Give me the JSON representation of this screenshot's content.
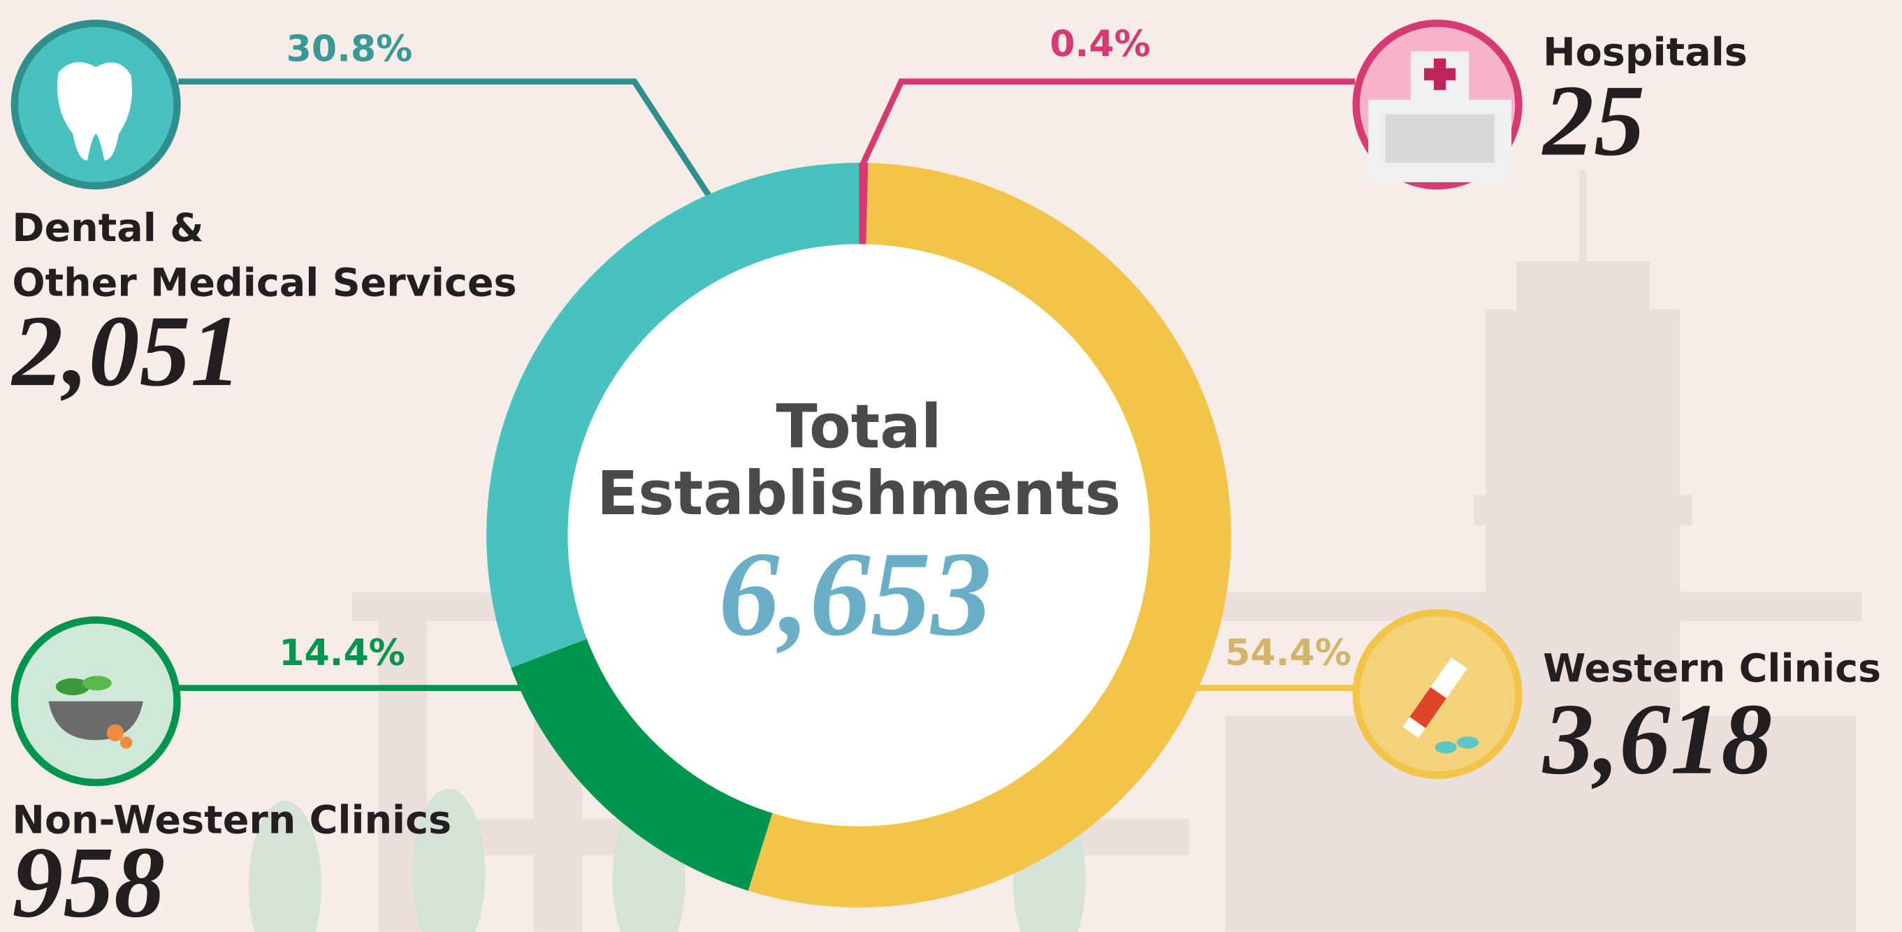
{
  "chart_data": {
    "type": "donut",
    "center_title": [
      "Total",
      "Establishments"
    ],
    "center_value": "6,653",
    "categories": [
      "Hospitals",
      "Western Clinics",
      "Non-Western Clinics",
      "Dental & Other Medical Services"
    ],
    "values": [
      0.4,
      54.4,
      14.4,
      30.8
    ],
    "value_labels": [
      "0.4%",
      "54.4%",
      "14.4%",
      "30.8%"
    ],
    "counts": [
      "25",
      "3,618",
      "958",
      "2,051"
    ],
    "colors": [
      "#d63a72",
      "#f2c44a",
      "#00954f",
      "#48c1bf"
    ]
  }
}
